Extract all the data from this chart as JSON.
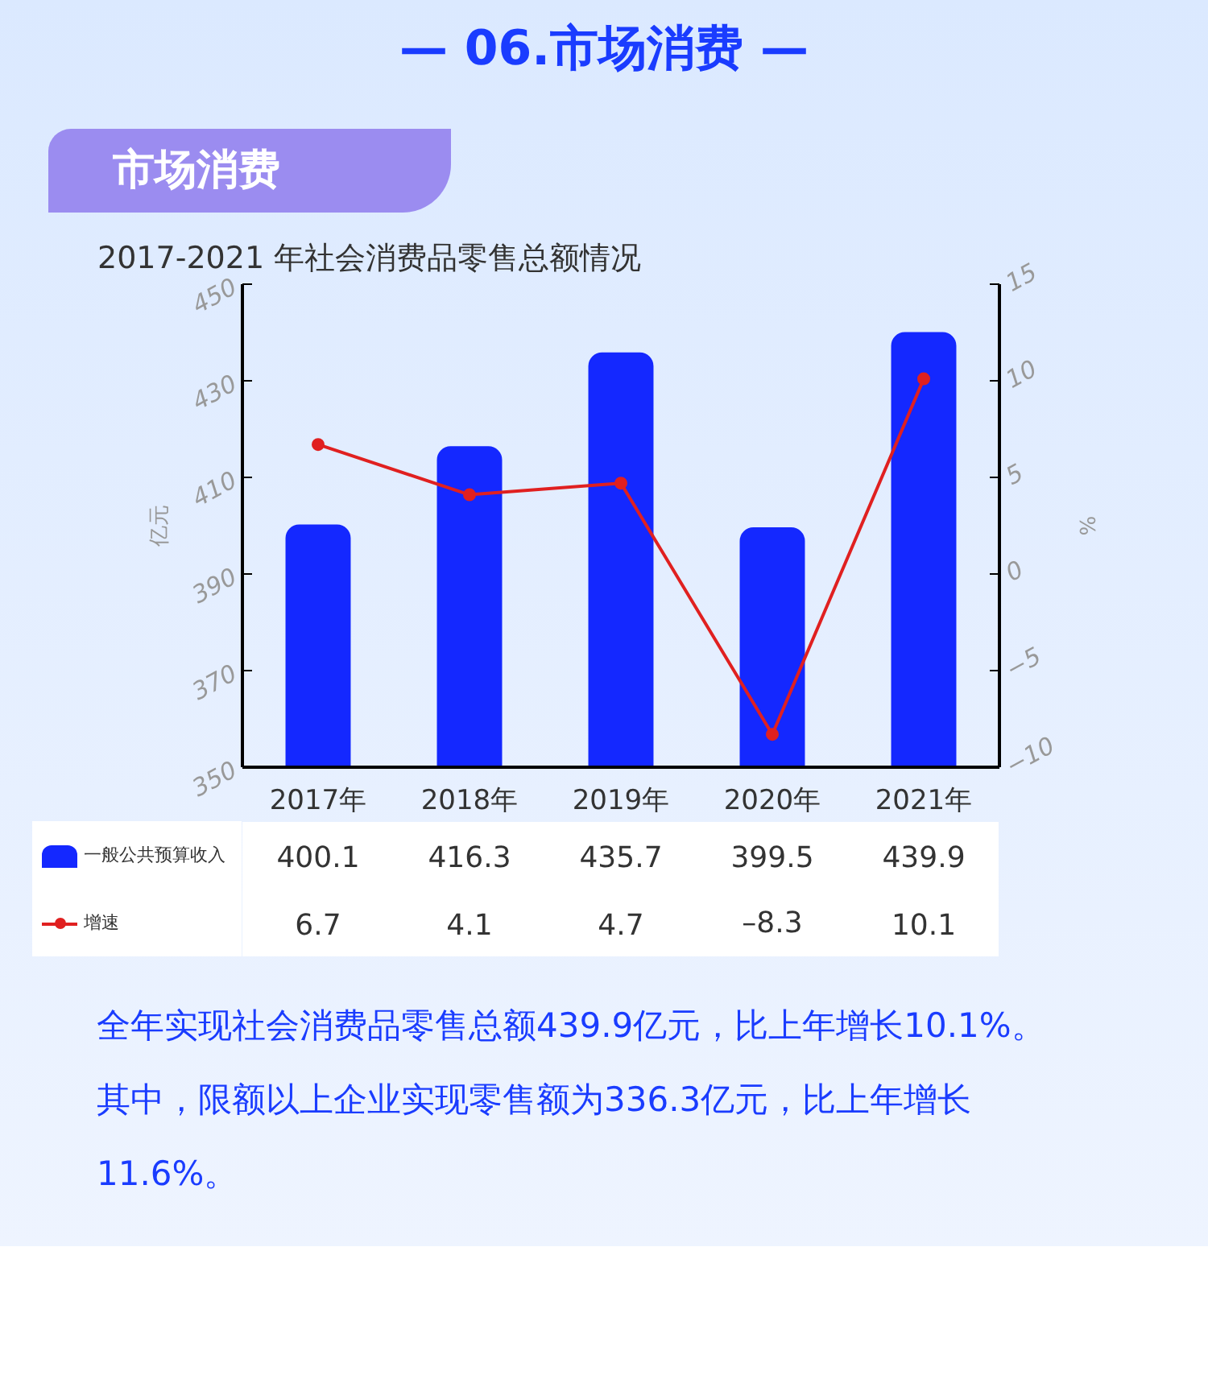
{
  "chart_data": {
    "type": "bar",
    "title": "2017-2021 年社会消费品零售总额情况",
    "annotations": [
      "— 06.市场消费 —",
      "市场消费",
      "全年实现社会消费品零售总额439.9亿元，比上年增长10.1%。其中，限额以上企业实现零售额为336.3亿元，比上年增长11.6%。"
    ],
    "ylabel": "亿元",
    "y2label": "%",
    "categories": [
      "2017年",
      "2018年",
      "2019年",
      "2020年",
      "2021年"
    ],
    "series": [
      {
        "name": "一般公共预算收入",
        "type": "bar",
        "color": "#1428ff",
        "values": [
          400.1,
          416.3,
          435.7,
          399.5,
          439.9
        ]
      },
      {
        "name": "增速",
        "type": "line",
        "axis": "y2",
        "color": "#e02020",
        "marker": "circle",
        "values": [
          6.7,
          4.1,
          4.7,
          -8.3,
          10.1
        ],
        "value_labels": [
          "6.7",
          "4.1",
          "4.7",
          "–8.3",
          "10.1"
        ]
      }
    ],
    "ylim": [
      350,
      450
    ],
    "yticks": [
      350,
      370,
      390,
      410,
      430,
      450
    ],
    "y2lim": [
      -10,
      15
    ],
    "y2ticks": [
      {
        "value": -10,
        "label": "−10"
      },
      {
        "value": -5,
        "label": "−5"
      },
      0,
      5,
      10,
      15
    ],
    "data_labels": true,
    "legend": "bottom",
    "grid": false
  }
}
